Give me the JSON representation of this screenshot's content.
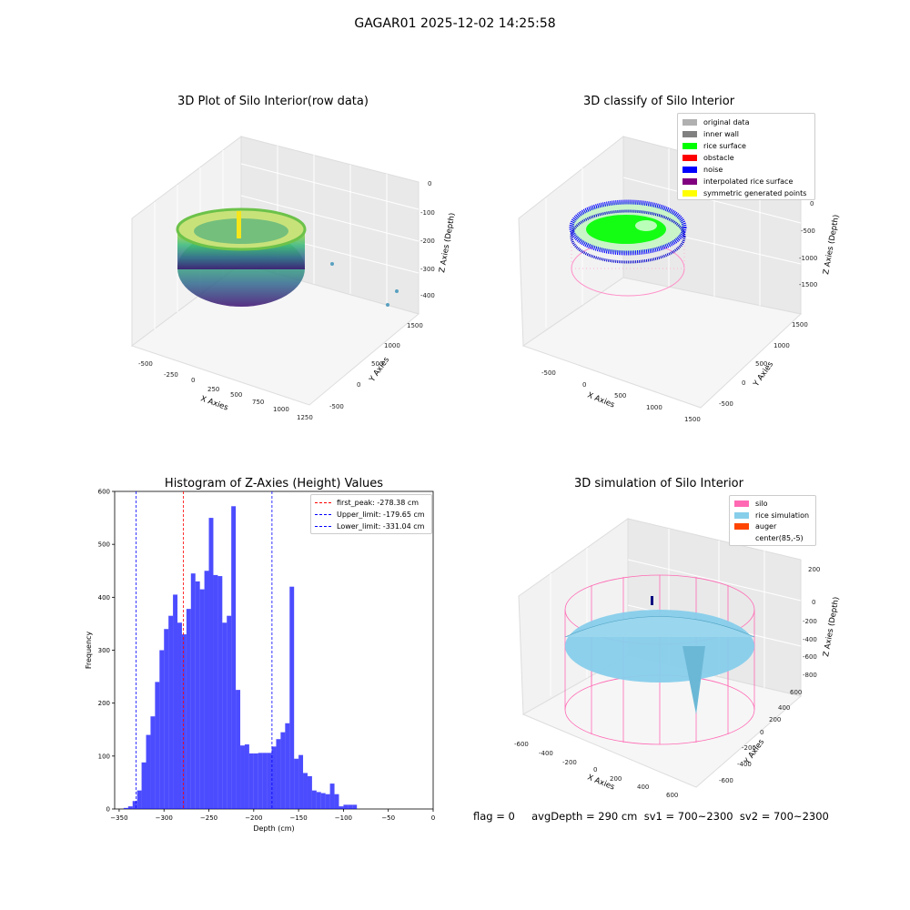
{
  "figure": {
    "suptitle": "GAGAR01 2025-12-02 14:25:58",
    "footer": "flag = 0     avgDepth = 290 cm  sv1 = 700~2300  sv2 = 700~2300"
  },
  "panels": {
    "raw": {
      "title": "3D Plot of Silo Interior(row data)",
      "xlabel": "X Axies",
      "ylabel": "Y Axies",
      "zlabel": "Z Axies (Depth)",
      "xticks": [
        "-500",
        "-250",
        "0",
        "250",
        "500",
        "750",
        "1000",
        "1250"
      ],
      "yticks": [
        "-500",
        "0",
        "500",
        "1000",
        "1500"
      ],
      "zticks": [
        "0",
        "-100",
        "-200",
        "-300",
        "-400"
      ]
    },
    "classify": {
      "title": "3D classify of Silo Interior",
      "xlabel": "X Axies",
      "ylabel": "Y Axies",
      "zlabel": "Z Axies (Depth)",
      "xticks": [
        "-500",
        "0",
        "500",
        "1000",
        "1500"
      ],
      "yticks": [
        "-500",
        "0",
        "500",
        "1000",
        "1500"
      ],
      "zticks": [
        "0",
        "-500",
        "-1000",
        "-1500"
      ],
      "legend": [
        {
          "label": "original data",
          "color": "#b0b0b0"
        },
        {
          "label": "inner wall",
          "color": "#808080"
        },
        {
          "label": "rice surface",
          "color": "#00ff00"
        },
        {
          "label": "obstacle",
          "color": "#ff0000"
        },
        {
          "label": "noise",
          "color": "#0000ff"
        },
        {
          "label": "interpolated rice surface",
          "color": "#800080"
        },
        {
          "label": "symmetric generated points",
          "color": "#ffff00"
        }
      ]
    },
    "simulation": {
      "title": "3D simulation of Silo Interior",
      "xlabel": "X Axies",
      "ylabel": "Y Axies",
      "zlabel": "Z Axies (Depth)",
      "xticks": [
        "-600",
        "-400",
        "-200",
        "0",
        "200",
        "400",
        "600"
      ],
      "yticks": [
        "-600",
        "-400",
        "-200",
        "0",
        "200",
        "400",
        "600"
      ],
      "zticks": [
        "200",
        "0",
        "-200",
        "-400",
        "-600",
        "-800"
      ],
      "legend": [
        {
          "label": "silo",
          "color": "#ff69b4"
        },
        {
          "label": "rice simulation",
          "color": "#87ceeb"
        },
        {
          "label": "auger",
          "color": "#ff4500"
        },
        {
          "label": "center(85,-5)",
          "color": "#ffffff"
        }
      ]
    }
  },
  "chart_data": {
    "type": "bar",
    "title": "Histogram of Z-Axies (Height) Values",
    "xlabel": "Depth (cm)",
    "ylabel": "Frequency",
    "xlim": [
      -355,
      0
    ],
    "ylim": [
      0,
      600
    ],
    "xticks": [
      -350,
      -300,
      -250,
      -200,
      -150,
      -100,
      -50,
      0
    ],
    "yticks": [
      0,
      100,
      200,
      300,
      400,
      500,
      600
    ],
    "bin_width": 5,
    "bin_starts": [
      -345,
      -340,
      -335,
      -330,
      -325,
      -320,
      -315,
      -310,
      -305,
      -300,
      -295,
      -290,
      -285,
      -280,
      -275,
      -270,
      -265,
      -260,
      -255,
      -250,
      -245,
      -240,
      -235,
      -230,
      -225,
      -220,
      -215,
      -210,
      -205,
      -200,
      -195,
      -190,
      -185,
      -180,
      -175,
      -170,
      -165,
      -160,
      -155,
      -150,
      -145,
      -140,
      -135,
      -130,
      -125,
      -120,
      -115,
      -110,
      -105,
      -100,
      -95,
      -90,
      -85,
      -80,
      -75,
      -70,
      -65,
      -60,
      -55,
      -50,
      -45,
      -40,
      -35,
      -30,
      -25,
      -20
    ],
    "values": [
      2,
      5,
      15,
      35,
      88,
      140,
      175,
      240,
      300,
      340,
      365,
      405,
      352,
      330,
      378,
      445,
      430,
      415,
      450,
      550,
      442,
      440,
      352,
      365,
      572,
      225,
      120,
      122,
      105,
      105,
      106,
      106,
      106,
      118,
      132,
      145,
      162,
      420,
      95,
      102,
      68,
      62,
      35,
      32,
      30,
      28,
      48,
      28,
      5,
      8,
      8,
      8,
      0,
      0,
      0,
      0,
      0,
      0,
      0,
      0,
      0,
      0,
      0,
      0,
      0,
      0
    ],
    "color": "#0000ff",
    "lines": [
      {
        "label": "first_peak: -278.38 cm",
        "x": -278.38,
        "color": "#ff0000"
      },
      {
        "label": "Upper_limit: -179.65 cm",
        "x": -179.65,
        "color": "#0000ff"
      },
      {
        "label": "Lower_limit: -331.04 cm",
        "x": -331.04,
        "color": "#0000ff"
      }
    ]
  }
}
